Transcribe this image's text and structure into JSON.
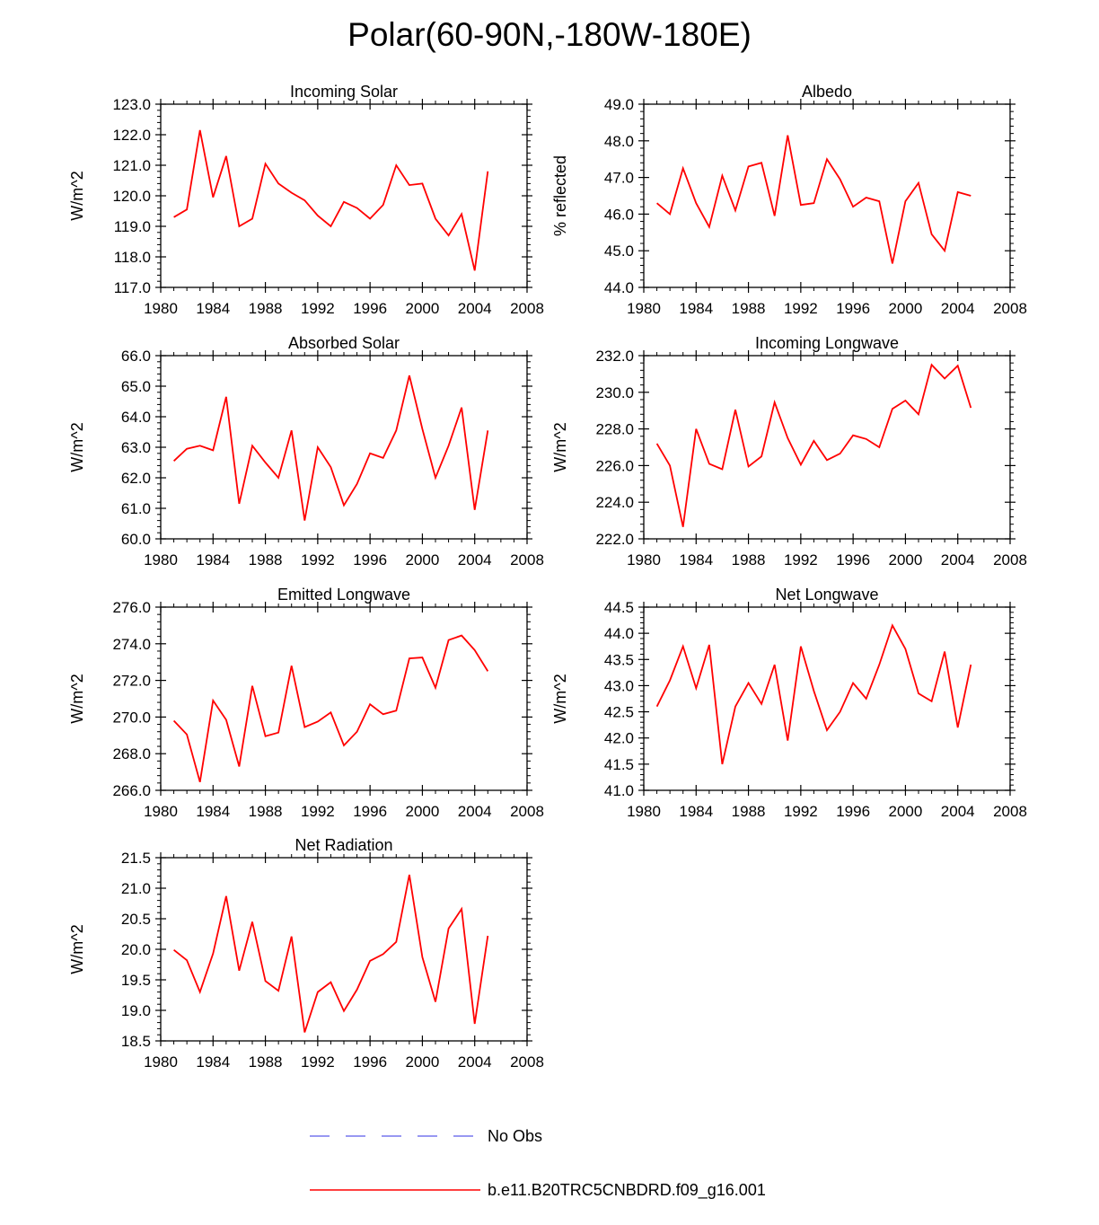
{
  "title": "Polar(60-90N,-180W-180E)",
  "legend": [
    {
      "label": "No Obs",
      "color": "#7777ee",
      "style": "dashed"
    },
    {
      "label": "b.e11.B20TRC5CNBDRD.f09_g16.001",
      "color": "#ff0000",
      "style": "solid"
    }
  ],
  "chart_data": [
    {
      "type": "line",
      "title": "Incoming Solar",
      "ylabel": "W/m^2",
      "xlabel": "",
      "xlim": [
        1980,
        2008
      ],
      "xticks": [
        1980,
        1984,
        1988,
        1992,
        1996,
        2000,
        2004,
        2008
      ],
      "ylim": [
        117,
        123
      ],
      "yticks": [
        "117.0",
        "118.0",
        "119.0",
        "120.0",
        "121.0",
        "122.0",
        "123.0"
      ],
      "yminor": 4,
      "x": [
        1981,
        1982,
        1983,
        1984,
        1985,
        1986,
        1987,
        1988,
        1989,
        1990,
        1991,
        1992,
        1993,
        1994,
        1995,
        1996,
        1997,
        1998,
        1999,
        2000,
        2001,
        2002,
        2003,
        2004,
        2005
      ],
      "series": [
        {
          "name": "b.e11.B20TRC5CNBDRD.f09_g16.001",
          "color": "#ff0000",
          "values": [
            119.3,
            119.55,
            122.15,
            119.95,
            121.3,
            119.0,
            119.25,
            121.05,
            120.4,
            120.1,
            119.85,
            119.35,
            119.0,
            119.8,
            119.6,
            119.25,
            119.7,
            121.0,
            120.35,
            120.4,
            119.25,
            118.7,
            119.4,
            117.55,
            120.8
          ]
        }
      ]
    },
    {
      "type": "line",
      "title": "Albedo",
      "ylabel": "% reflected",
      "xlabel": "",
      "xlim": [
        1980,
        2008
      ],
      "xticks": [
        1980,
        1984,
        1988,
        1992,
        1996,
        2000,
        2004,
        2008
      ],
      "ylim": [
        44,
        49
      ],
      "yticks": [
        "44.0",
        "45.0",
        "46.0",
        "47.0",
        "48.0",
        "49.0"
      ],
      "yminor": 4,
      "x": [
        1981,
        1982,
        1983,
        1984,
        1985,
        1986,
        1987,
        1988,
        1989,
        1990,
        1991,
        1992,
        1993,
        1994,
        1995,
        1996,
        1997,
        1998,
        1999,
        2000,
        2001,
        2002,
        2003,
        2004,
        2005
      ],
      "series": [
        {
          "name": "b.e11.B20TRC5CNBDRD.f09_g16.001",
          "color": "#ff0000",
          "values": [
            46.3,
            46.0,
            47.25,
            46.3,
            45.65,
            47.05,
            46.1,
            47.3,
            47.4,
            45.95,
            48.15,
            46.25,
            46.3,
            47.5,
            46.95,
            46.2,
            46.45,
            46.35,
            44.65,
            46.35,
            46.85,
            45.45,
            45.0,
            46.6,
            46.5
          ]
        }
      ]
    },
    {
      "type": "line",
      "title": "Absorbed Solar",
      "ylabel": "W/m^2",
      "xlabel": "",
      "xlim": [
        1980,
        2008
      ],
      "xticks": [
        1980,
        1984,
        1988,
        1992,
        1996,
        2000,
        2004,
        2008
      ],
      "ylim": [
        60,
        66
      ],
      "yticks": [
        "60.0",
        "61.0",
        "62.0",
        "63.0",
        "64.0",
        "65.0",
        "66.0"
      ],
      "yminor": 4,
      "x": [
        1981,
        1982,
        1983,
        1984,
        1985,
        1986,
        1987,
        1988,
        1989,
        1990,
        1991,
        1992,
        1993,
        1994,
        1995,
        1996,
        1997,
        1998,
        1999,
        2000,
        2001,
        2002,
        2003,
        2004,
        2005
      ],
      "series": [
        {
          "name": "b.e11.B20TRC5CNBDRD.f09_g16.001",
          "color": "#ff0000",
          "values": [
            62.55,
            62.95,
            63.05,
            62.9,
            64.65,
            61.15,
            63.05,
            62.5,
            62.0,
            63.55,
            60.6,
            63.0,
            62.35,
            61.1,
            61.8,
            62.8,
            62.65,
            63.55,
            65.35,
            63.6,
            62.0,
            63.05,
            64.3,
            60.95,
            63.55
          ]
        }
      ]
    },
    {
      "type": "line",
      "title": "Incoming Longwave",
      "ylabel": "W/m^2",
      "xlabel": "",
      "xlim": [
        1980,
        2008
      ],
      "xticks": [
        1980,
        1984,
        1988,
        1992,
        1996,
        2000,
        2004,
        2008
      ],
      "ylim": [
        222,
        232
      ],
      "yticks": [
        "222.0",
        "224.0",
        "226.0",
        "228.0",
        "230.0",
        "232.0"
      ],
      "yminor": 4,
      "x": [
        1981,
        1982,
        1983,
        1984,
        1985,
        1986,
        1987,
        1988,
        1989,
        1990,
        1991,
        1992,
        1993,
        1994,
        1995,
        1996,
        1997,
        1998,
        1999,
        2000,
        2001,
        2002,
        2003,
        2004,
        2005
      ],
      "series": [
        {
          "name": "b.e11.B20TRC5CNBDRD.f09_g16.001",
          "color": "#ff0000",
          "values": [
            227.2,
            226.0,
            222.65,
            228.0,
            226.1,
            225.8,
            229.05,
            225.95,
            226.5,
            229.45,
            227.5,
            226.05,
            227.35,
            226.3,
            226.65,
            227.65,
            227.45,
            227.0,
            229.1,
            229.55,
            228.8,
            231.5,
            230.75,
            231.45,
            229.15
          ]
        }
      ]
    },
    {
      "type": "line",
      "title": "Emitted Longwave",
      "ylabel": "W/m^2",
      "xlabel": "",
      "xlim": [
        1980,
        2008
      ],
      "xticks": [
        1980,
        1984,
        1988,
        1992,
        1996,
        2000,
        2004,
        2008
      ],
      "ylim": [
        266,
        276
      ],
      "yticks": [
        "266.0",
        "268.0",
        "270.0",
        "272.0",
        "274.0",
        "276.0"
      ],
      "yminor": 4,
      "x": [
        1981,
        1982,
        1983,
        1984,
        1985,
        1986,
        1987,
        1988,
        1989,
        1990,
        1991,
        1992,
        1993,
        1994,
        1995,
        1996,
        1997,
        1998,
        1999,
        2000,
        2001,
        2002,
        2003,
        2004,
        2005
      ],
      "series": [
        {
          "name": "b.e11.B20TRC5CNBDRD.f09_g16.001",
          "color": "#ff0000",
          "values": [
            269.8,
            269.05,
            266.45,
            270.9,
            269.85,
            267.3,
            271.7,
            268.95,
            269.15,
            272.8,
            269.45,
            269.75,
            270.25,
            268.45,
            269.2,
            270.7,
            270.15,
            270.35,
            273.2,
            273.25,
            271.6,
            274.2,
            274.45,
            273.65,
            272.5
          ]
        }
      ]
    },
    {
      "type": "line",
      "title": "Net Longwave",
      "ylabel": "W/m^2",
      "xlabel": "",
      "xlim": [
        1980,
        2008
      ],
      "xticks": [
        1980,
        1984,
        1988,
        1992,
        1996,
        2000,
        2004,
        2008
      ],
      "ylim": [
        41,
        44.5
      ],
      "yticks": [
        "41.0",
        "41.5",
        "42.0",
        "42.5",
        "43.0",
        "43.5",
        "44.0",
        "44.5"
      ],
      "yminor": 4,
      "x": [
        1981,
        1982,
        1983,
        1984,
        1985,
        1986,
        1987,
        1988,
        1989,
        1990,
        1991,
        1992,
        1993,
        1994,
        1995,
        1996,
        1997,
        1998,
        1999,
        2000,
        2001,
        2002,
        2003,
        2004,
        2005
      ],
      "series": [
        {
          "name": "b.e11.B20TRC5CNBDRD.f09_g16.001",
          "color": "#ff0000",
          "values": [
            42.6,
            43.1,
            43.75,
            42.95,
            43.78,
            41.5,
            42.6,
            43.05,
            42.65,
            43.4,
            41.95,
            43.75,
            42.9,
            42.15,
            42.5,
            43.05,
            42.75,
            43.4,
            44.15,
            43.7,
            42.85,
            42.7,
            43.65,
            42.2,
            43.4
          ]
        }
      ]
    },
    {
      "type": "line",
      "title": "Net Radiation",
      "ylabel": "W/m^2",
      "xlabel": "",
      "xlim": [
        1980,
        2008
      ],
      "xticks": [
        1980,
        1984,
        1988,
        1992,
        1996,
        2000,
        2004,
        2008
      ],
      "ylim": [
        18.5,
        21.5
      ],
      "yticks": [
        "18.5",
        "19.0",
        "19.5",
        "20.0",
        "20.5",
        "21.0",
        "21.5"
      ],
      "yminor": 4,
      "x": [
        1981,
        1982,
        1983,
        1984,
        1985,
        1986,
        1987,
        1988,
        1989,
        1990,
        1991,
        1992,
        1993,
        1994,
        1995,
        1996,
        1997,
        1998,
        1999,
        2000,
        2001,
        2002,
        2003,
        2004,
        2005
      ],
      "series": [
        {
          "name": "b.e11.B20TRC5CNBDRD.f09_g16.001",
          "color": "#ff0000",
          "values": [
            19.99,
            19.82,
            19.3,
            19.93,
            20.87,
            19.65,
            20.45,
            19.48,
            19.32,
            20.21,
            18.64,
            19.3,
            19.46,
            18.99,
            19.34,
            19.81,
            19.92,
            20.12,
            21.22,
            19.87,
            19.14,
            20.34,
            20.66,
            18.78,
            20.22
          ]
        }
      ]
    }
  ]
}
